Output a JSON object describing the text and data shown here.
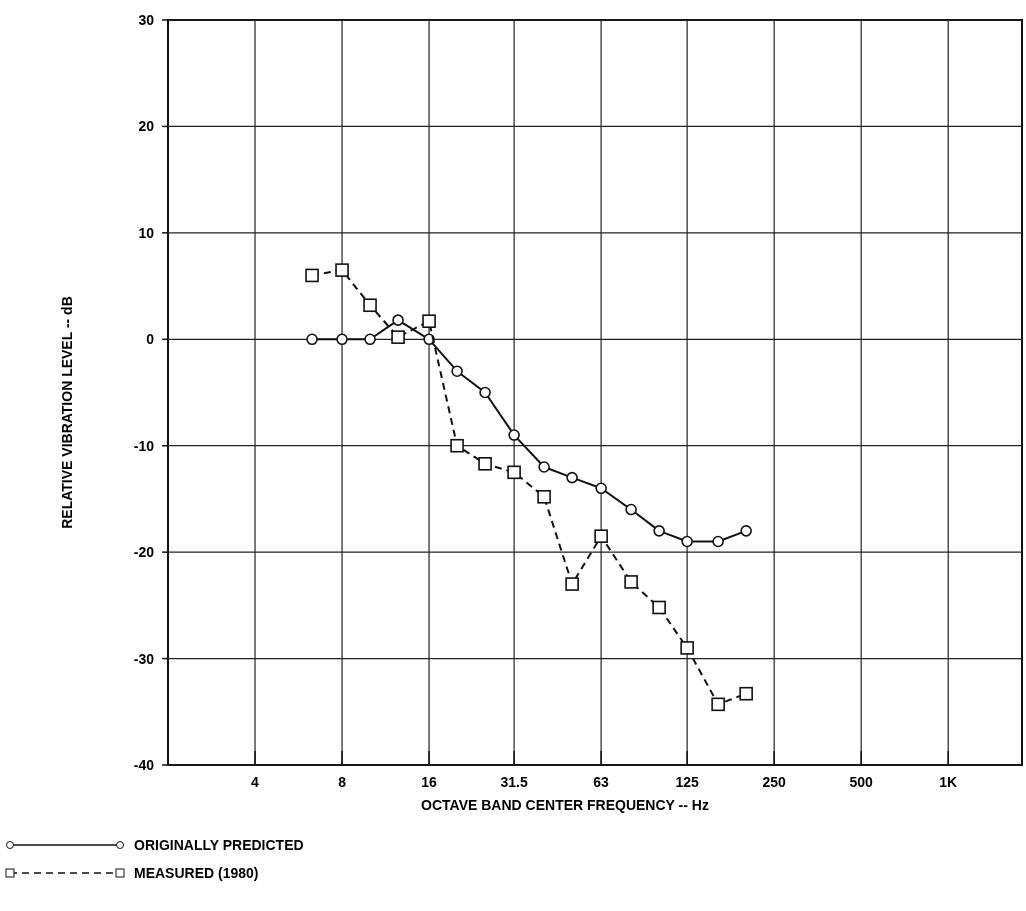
{
  "chart_data": {
    "type": "line",
    "xlabel": "OCTAVE BAND CENTER FREQUENCY -- Hz",
    "ylabel": "RELATIVE VIBRATION LEVEL -- dB",
    "log": "x",
    "grid": true,
    "legend": "bottom left",
    "xlim": [
      2,
      1800
    ],
    "xticks": [
      4,
      8,
      16,
      31.5,
      63,
      125,
      250,
      500,
      {
        "value": 1000,
        "label": "1K"
      }
    ],
    "ylim": [
      -40,
      30
    ],
    "yticks": [
      -40,
      -30,
      -20,
      -10,
      0,
      10,
      20,
      30
    ],
    "x": [
      6.3,
      8,
      10,
      12.5,
      16,
      20,
      25,
      31.5,
      40,
      50,
      63,
      80,
      100,
      125,
      160,
      200
    ],
    "series": [
      {
        "name": "ORIGINALLY PREDICTED",
        "color": "#111111",
        "marker": "circle",
        "line_style": "solid",
        "values": [
          0,
          0,
          0,
          1.8,
          0,
          -3,
          -5,
          -9,
          -12,
          -13,
          -14,
          -16,
          -18,
          -19,
          -19,
          -18
        ]
      },
      {
        "name": "MEASURED (1980)",
        "color": "#111111",
        "marker": "square",
        "line_style": "dashed",
        "values": [
          6,
          6.5,
          3.2,
          0.2,
          1.7,
          -10,
          -11.7,
          -12.5,
          -14.8,
          -23,
          -18.5,
          -22.8,
          -25.2,
          -29,
          -34.3,
          -33.3
        ]
      }
    ]
  }
}
